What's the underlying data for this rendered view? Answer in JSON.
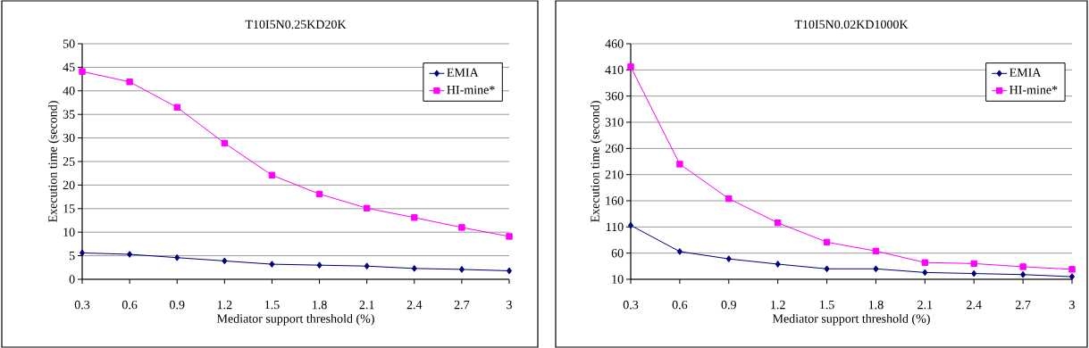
{
  "chart_data": [
    {
      "type": "line",
      "title": "T10I5N0.25KD20K",
      "xlabel": "Mediator support threshold (%)",
      "ylabel": "Execution time (second)",
      "categories": [
        "0.3",
        "0.6",
        "0.9",
        "1.2",
        "1.5",
        "1.8",
        "2.1",
        "2.4",
        "2.7",
        "3"
      ],
      "series": [
        {
          "name": "EMIA",
          "color": "#000080",
          "marker": "diamond",
          "values": [
            5.6,
            5.3,
            4.6,
            3.9,
            3.2,
            3.0,
            2.8,
            2.3,
            2.1,
            1.8
          ]
        },
        {
          "name": "HI-mine*",
          "color": "#ff00ff",
          "marker": "square",
          "values": [
            44.1,
            41.9,
            36.5,
            28.9,
            22.1,
            18.1,
            15.1,
            13.1,
            11.0,
            9.1
          ]
        }
      ],
      "ylim": [
        0,
        50
      ],
      "yticks": [
        0,
        5,
        10,
        15,
        20,
        25,
        30,
        35,
        40,
        45,
        50
      ],
      "grid": "y",
      "legend": "top right",
      "line_style": "solid"
    },
    {
      "type": "line",
      "title": "T10I5N0.02KD1000K",
      "xlabel": "Mediator support threshold (%)",
      "ylabel": "Execution time (second)",
      "categories": [
        "0.3",
        "0.6",
        "0.9",
        "1.2",
        "1.5",
        "1.8",
        "2.1",
        "2.4",
        "2.7",
        "3"
      ],
      "series": [
        {
          "name": "EMIA",
          "color": "#000080",
          "marker": "diamond",
          "values": [
            113,
            63,
            49,
            39,
            30,
            30,
            23,
            21,
            19,
            15
          ]
        },
        {
          "name": "HI-mine*",
          "color": "#ff00ff",
          "marker": "square",
          "values": [
            416,
            230,
            164,
            118,
            81,
            64,
            42,
            40,
            34,
            29
          ]
        }
      ],
      "ylim": [
        10,
        460
      ],
      "yticks": [
        10,
        60,
        110,
        160,
        210,
        260,
        310,
        360,
        410,
        460
      ],
      "grid": "y",
      "legend": "top right",
      "line_style": "solid"
    }
  ]
}
